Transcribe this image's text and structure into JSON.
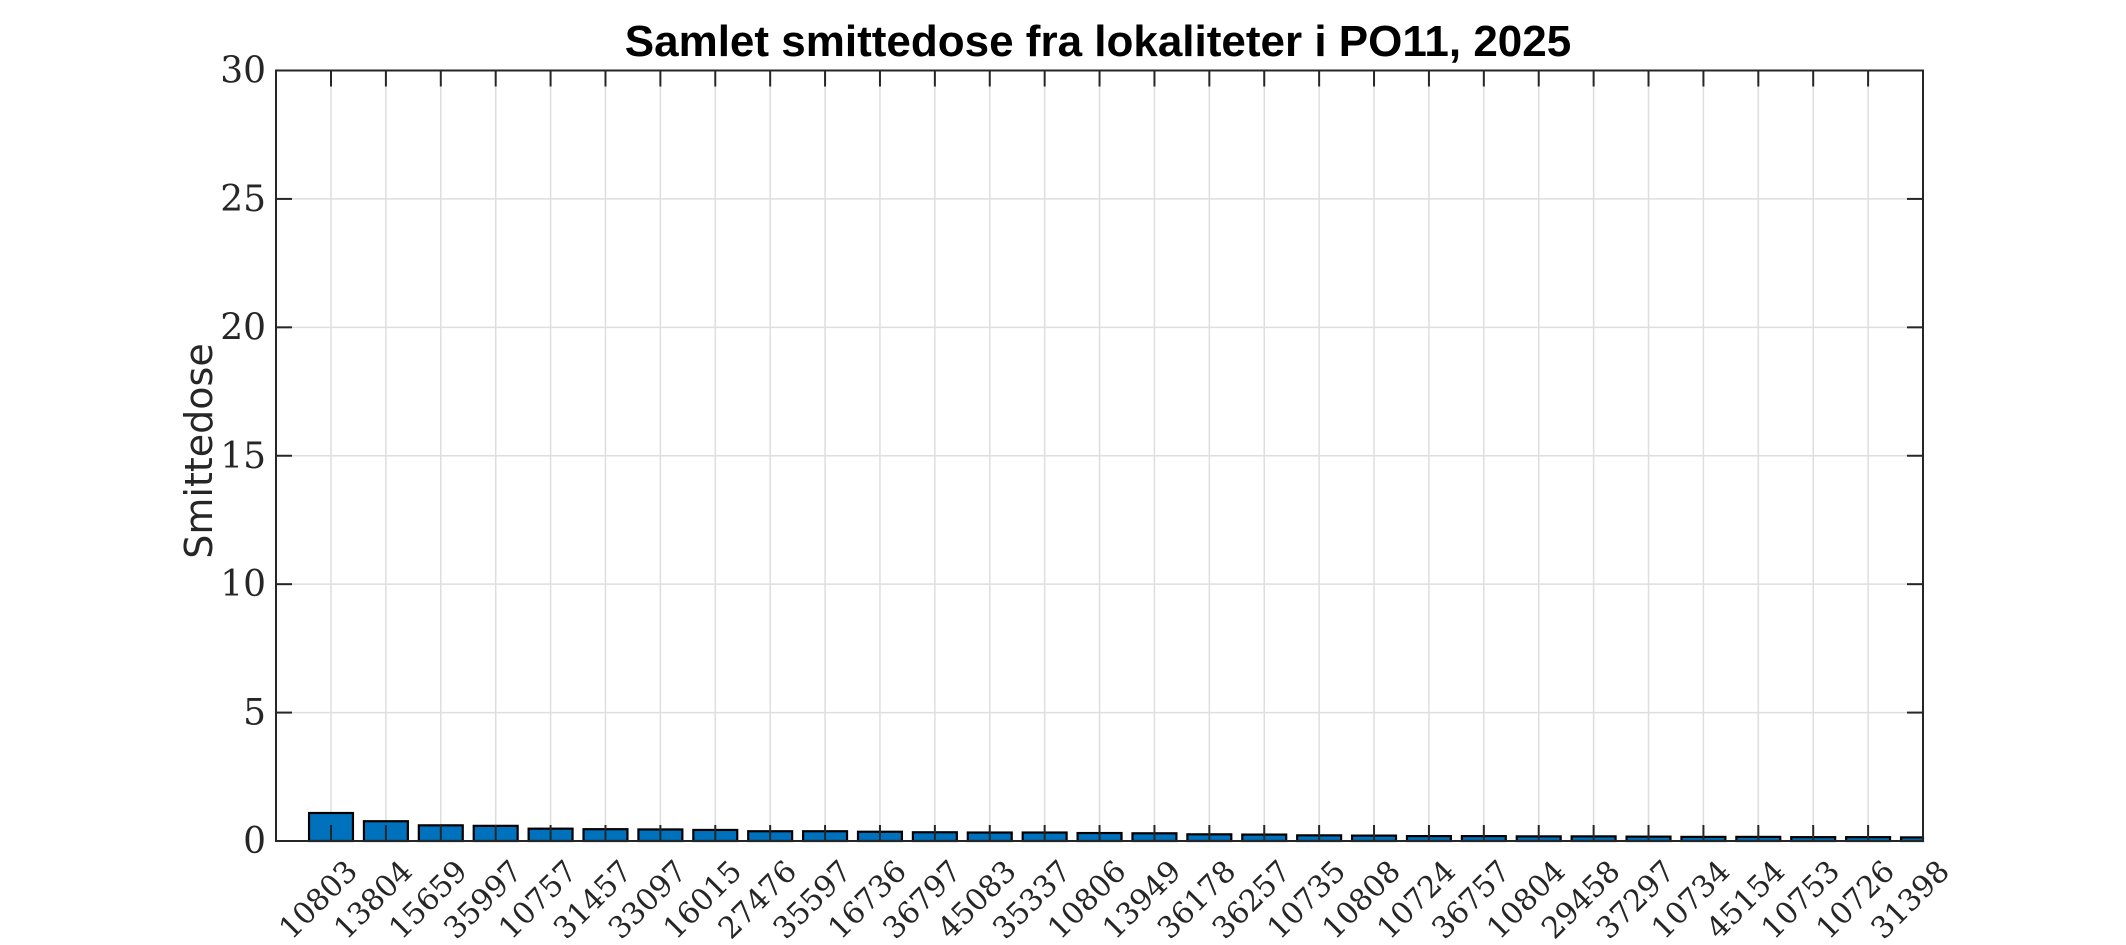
{
  "chart_data": {
    "type": "bar",
    "title": "Samlet smittedose fra lokaliteter i PO11, 2025",
    "xlabel": "",
    "ylabel": "Smittedose",
    "ylim": [
      0,
      30
    ],
    "yticks": [
      0,
      5,
      10,
      15,
      20,
      25,
      30
    ],
    "grid": true,
    "legend": null,
    "bar_color": "#0072BD",
    "edge_color": "#000000",
    "categories": [
      "10803",
      "13804",
      "15659",
      "35997",
      "10757",
      "31457",
      "33097",
      "16015",
      "27476",
      "35597",
      "16736",
      "36797",
      "45083",
      "35337",
      "10806",
      "13949",
      "36178",
      "36257",
      "10735",
      "10808",
      "10724",
      "36757",
      "10804",
      "29458",
      "37297",
      "10734",
      "45154",
      "10753",
      "10726",
      "31398"
    ],
    "values": [
      1.09,
      0.77,
      0.61,
      0.59,
      0.48,
      0.46,
      0.45,
      0.43,
      0.38,
      0.38,
      0.36,
      0.34,
      0.33,
      0.33,
      0.31,
      0.3,
      0.26,
      0.25,
      0.22,
      0.21,
      0.19,
      0.19,
      0.18,
      0.18,
      0.17,
      0.16,
      0.16,
      0.15,
      0.15,
      0.14
    ],
    "xtick_rotation": 45
  }
}
